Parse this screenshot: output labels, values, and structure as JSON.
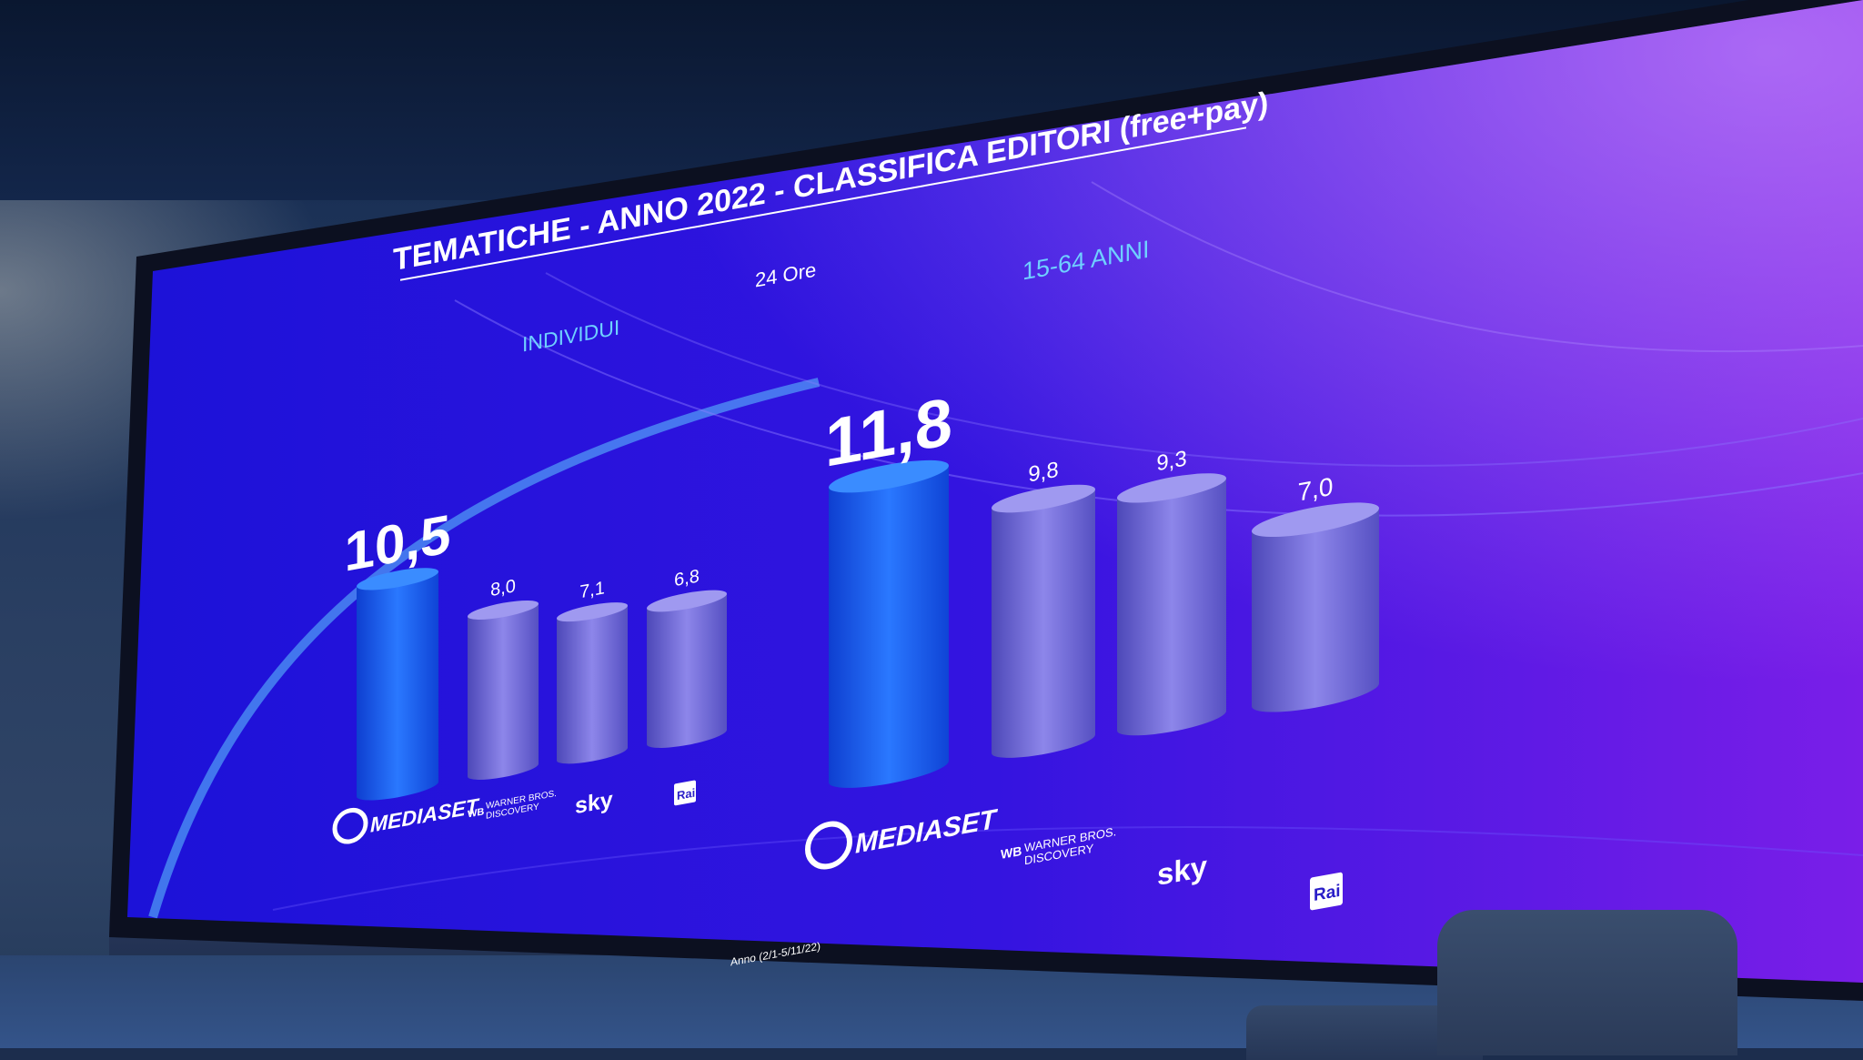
{
  "slide": {
    "title": "TEMATICHE  - ANNO 2022 - CLASSIFICA EDITORI (free+pay)",
    "subtitle": "24 Ore",
    "footnote": "Anno (2/1-5/11/22)"
  },
  "chart_data": [
    {
      "type": "bar",
      "title": "INDIVIDUI",
      "categories": [
        "MEDIASET",
        "WARNER BROS. DISCOVERY",
        "sky",
        "Rai"
      ],
      "values": [
        10.5,
        8.0,
        7.1,
        6.8
      ],
      "data_labels": [
        "10,5",
        "8,0",
        "7,1",
        "6,8"
      ],
      "colors": [
        "#1a5cf0",
        "#6a63d8",
        "#6a63d8",
        "#6a63d8"
      ]
    },
    {
      "type": "bar",
      "title": "15-64 ANNI",
      "categories": [
        "MEDIASET",
        "WARNER BROS. DISCOVERY",
        "sky",
        "Rai"
      ],
      "values": [
        11.8,
        9.8,
        9.3,
        7.0
      ],
      "data_labels": [
        "11,8",
        "9,8",
        "9,3",
        "7,0"
      ],
      "colors": [
        "#1a5cf0",
        "#7a70dc",
        "#7a70dc",
        "#7a70dc"
      ]
    }
  ],
  "logos": {
    "mediaset": "MEDIASET",
    "warner_line1": "WARNER BROS.",
    "warner_line2": "DISCOVERY",
    "wb_mark": "WB",
    "sky": "sky",
    "rai": "Rai"
  },
  "colors": {
    "screen_left": "#1c12d8",
    "screen_right": "#7a1ee8",
    "accent_label": "#6fd0ff",
    "highlight_bar": "#1a5cf0",
    "other_bar": "#6a63d8"
  }
}
